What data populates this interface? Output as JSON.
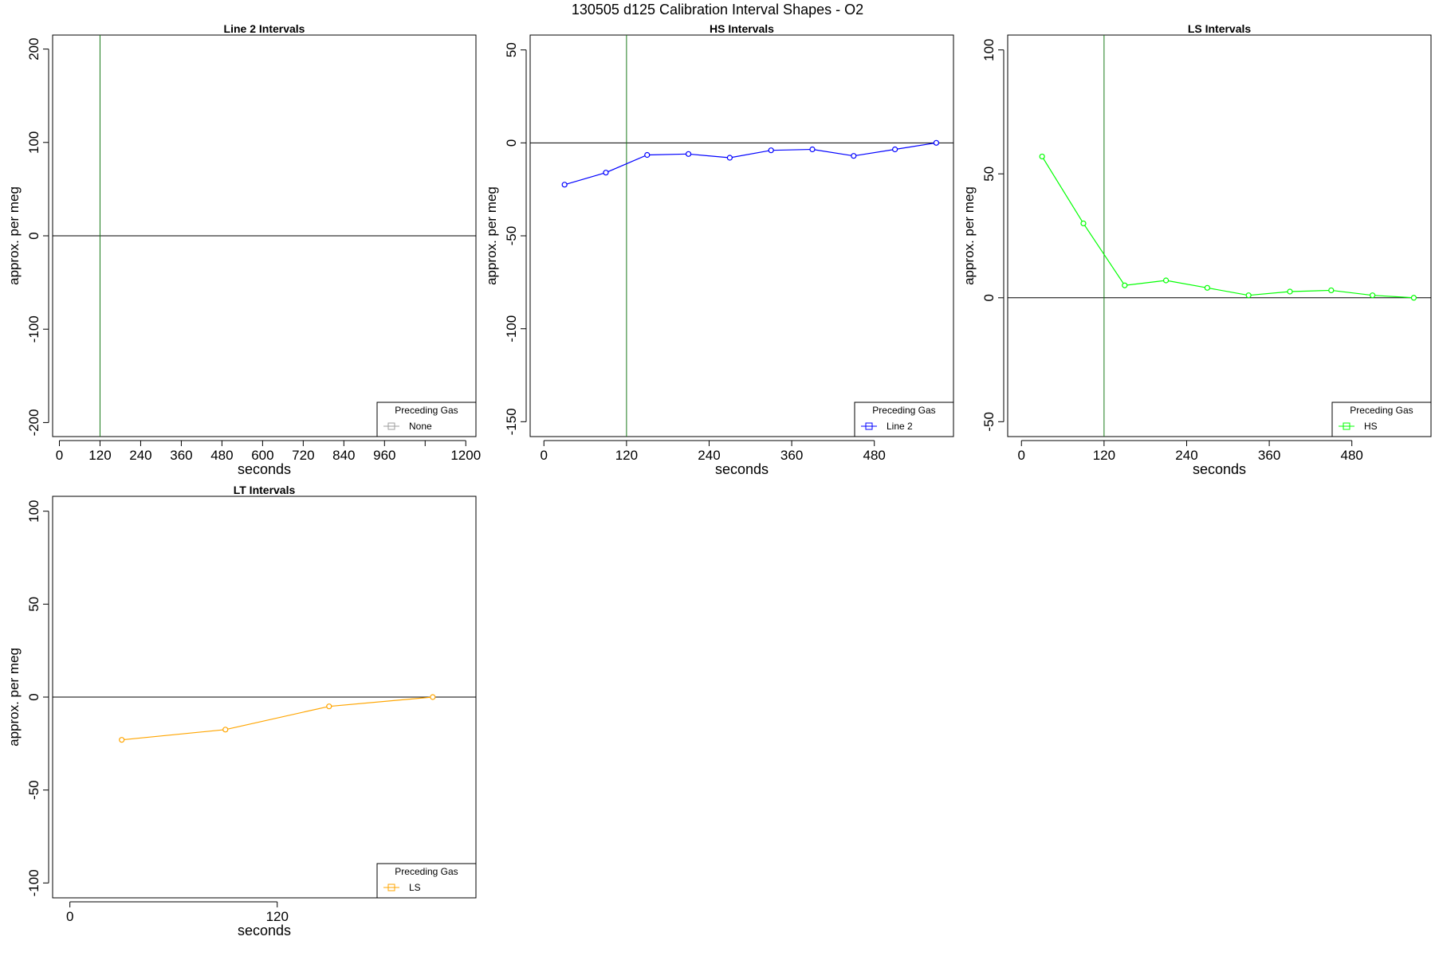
{
  "title": "130505   d125   Calibration Interval Shapes - O2",
  "chart_data": [
    {
      "type": "line",
      "title": "Line 2 Intervals",
      "xlabel": "seconds",
      "ylabel": "approx. per meg",
      "xlim": [
        -20,
        1230
      ],
      "ylim": [
        -215,
        215
      ],
      "xticks": [
        0,
        120,
        240,
        360,
        480,
        600,
        720,
        840,
        960,
        1080,
        1200
      ],
      "xtick_labels": [
        "0",
        "120",
        "240",
        "360",
        "480",
        "600",
        "720",
        "840",
        "960",
        "",
        "1200"
      ],
      "yticks": [
        -200,
        -100,
        0,
        100,
        200
      ],
      "vline": 120,
      "hline": 0,
      "legend": {
        "title": "Preceding Gas",
        "label": "None",
        "color": "#9e9e9e",
        "position": "bottom-right"
      },
      "series": [
        {
          "name": "None",
          "color": "#9e9e9e",
          "x": [],
          "y": []
        }
      ]
    },
    {
      "type": "line",
      "title": "HS Intervals",
      "xlabel": "seconds",
      "ylabel": "approx. per meg",
      "xlim": [
        -20,
        595
      ],
      "ylim": [
        -158,
        58
      ],
      "xticks": [
        0,
        120,
        240,
        360,
        480
      ],
      "xtick_labels": [
        "0",
        "120",
        "240",
        "360",
        "480"
      ],
      "yticks": [
        -150,
        -100,
        -50,
        0,
        50
      ],
      "vline": 120,
      "hline": 0,
      "legend": {
        "title": "Preceding Gas",
        "label": "Line 2",
        "color": "#0000ff",
        "position": "bottom-right"
      },
      "series": [
        {
          "name": "Line 2",
          "color": "#0000ff",
          "x": [
            30,
            90,
            150,
            210,
            270,
            330,
            390,
            450,
            510,
            570
          ],
          "y": [
            -22.5,
            -16,
            -6.5,
            -6,
            -8,
            -4,
            -3.5,
            -7,
            -3.5,
            0
          ]
        }
      ]
    },
    {
      "type": "line",
      "title": "LS Intervals",
      "xlabel": "seconds",
      "ylabel": "approx. per meg",
      "xlim": [
        -20,
        595
      ],
      "ylim": [
        -56,
        106
      ],
      "xticks": [
        0,
        120,
        240,
        360,
        480
      ],
      "xtick_labels": [
        "0",
        "120",
        "240",
        "360",
        "480"
      ],
      "yticks": [
        -50,
        0,
        50,
        100
      ],
      "vline": 120,
      "hline": 0,
      "legend": {
        "title": "Preceding Gas",
        "label": "HS",
        "color": "#00ff00",
        "position": "bottom-right"
      },
      "series": [
        {
          "name": "HS",
          "color": "#00ff00",
          "x": [
            30,
            90,
            150,
            210,
            270,
            330,
            390,
            450,
            510,
            570
          ],
          "y": [
            57,
            30,
            5,
            7,
            4,
            1,
            2.5,
            3,
            1,
            0
          ]
        }
      ]
    },
    {
      "type": "line",
      "title": "LT Intervals",
      "xlabel": "seconds",
      "ylabel": "approx. per meg",
      "xlim": [
        -10,
        235
      ],
      "ylim": [
        -108,
        108
      ],
      "xticks": [
        0,
        120
      ],
      "xtick_labels": [
        "0",
        "120"
      ],
      "yticks": [
        -100,
        -50,
        0,
        50,
        100
      ],
      "vline": null,
      "hline": 0,
      "legend": {
        "title": "Preceding Gas",
        "label": "LS",
        "color": "#ffa500",
        "position": "bottom-right"
      },
      "series": [
        {
          "name": "LS",
          "color": "#ffa500",
          "x": [
            30,
            90,
            150,
            210
          ],
          "y": [
            -23,
            -17.5,
            -5,
            0
          ]
        }
      ]
    }
  ]
}
